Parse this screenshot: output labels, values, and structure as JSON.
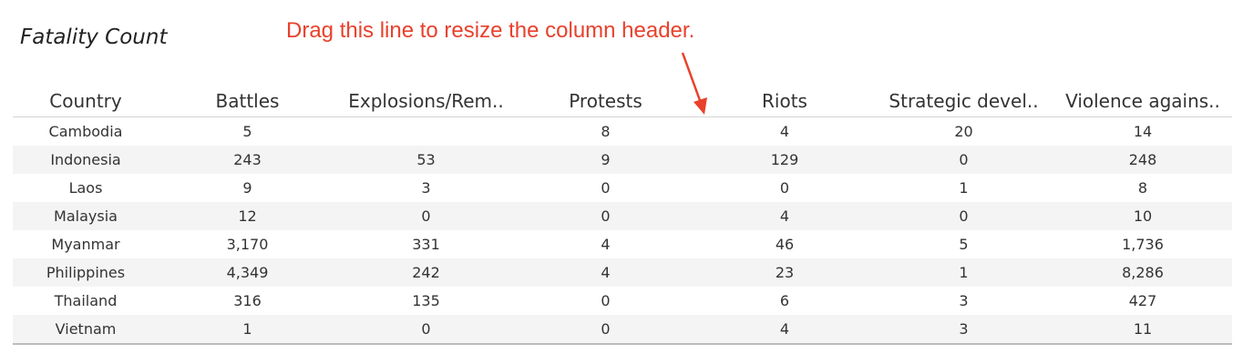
{
  "title": "Fatality Count",
  "annotation": "Drag this line to resize the column header.",
  "colors": {
    "annotation": "#e8412c",
    "row_alt": "#f4f4f4",
    "divider": "#d4d4d4"
  },
  "table": {
    "headers": [
      "Country",
      "Battles",
      "Explosions/Rem..",
      "Protests",
      "Riots",
      "Strategic devel..",
      "Violence agains.."
    ],
    "rows": [
      [
        "Cambodia",
        "5",
        "",
        "8",
        "4",
        "20",
        "14"
      ],
      [
        "Indonesia",
        "243",
        "53",
        "9",
        "129",
        "0",
        "248"
      ],
      [
        "Laos",
        "9",
        "3",
        "0",
        "0",
        "1",
        "8"
      ],
      [
        "Malaysia",
        "12",
        "0",
        "0",
        "4",
        "0",
        "10"
      ],
      [
        "Myanmar",
        "3,170",
        "331",
        "4",
        "46",
        "5",
        "1,736"
      ],
      [
        "Philippines",
        "4,349",
        "242",
        "4",
        "23",
        "1",
        "8,286"
      ],
      [
        "Thailand",
        "316",
        "135",
        "0",
        "6",
        "3",
        "427"
      ],
      [
        "Vietnam",
        "1",
        "0",
        "0",
        "4",
        "3",
        "11"
      ]
    ]
  }
}
